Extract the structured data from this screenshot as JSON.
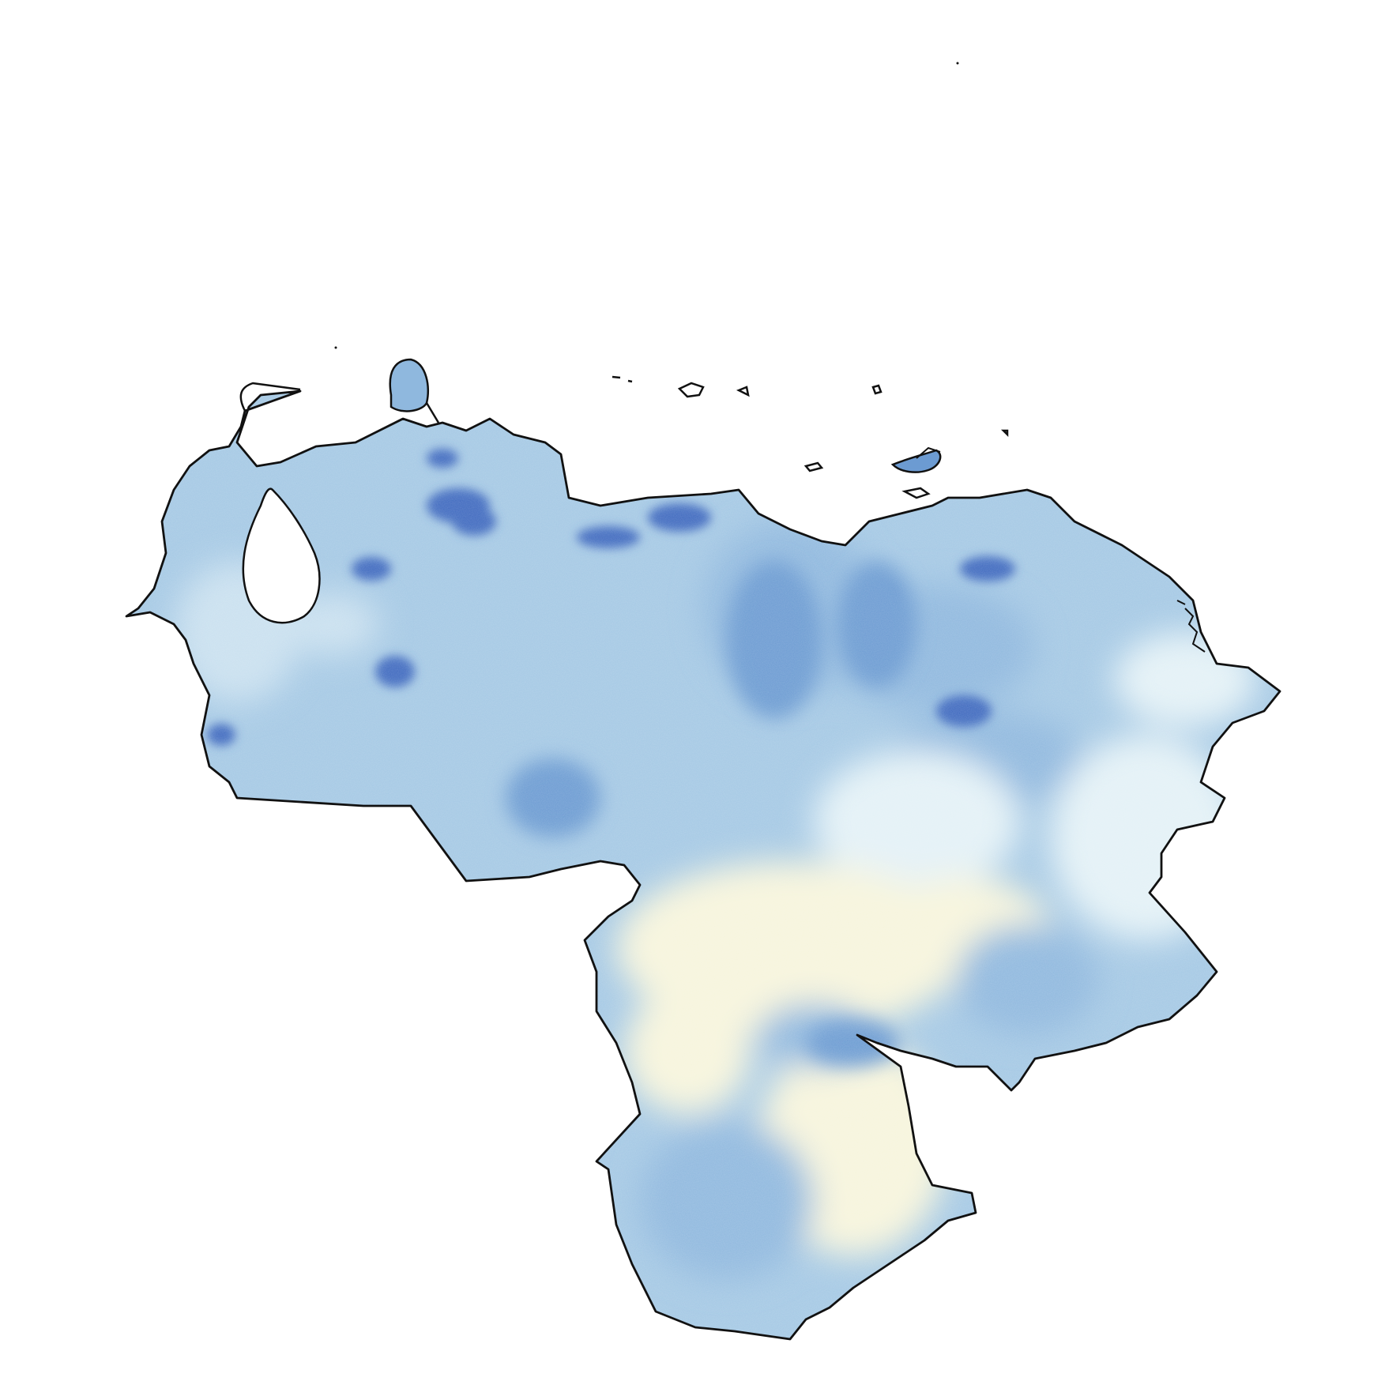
{
  "map": {
    "region": "Venezuela",
    "palette": {
      "darkest": "#3f6bbf",
      "dark": "#6c9bd2",
      "mid": "#8fb8de",
      "base": "#a4c8e4",
      "light": "#c9e0ef",
      "pale": "#e3f1f6",
      "cream": "#f6f4dc",
      "outline": "#111111"
    },
    "legend": null,
    "title": ""
  }
}
